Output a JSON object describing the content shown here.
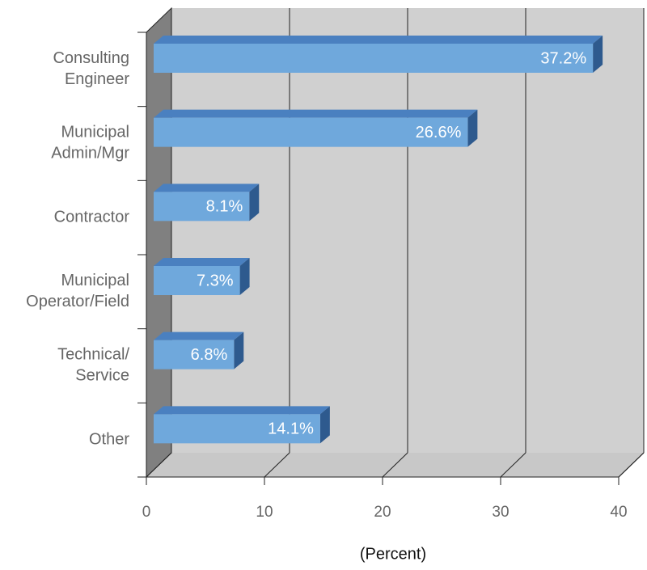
{
  "chart_data": {
    "type": "bar3d",
    "orientation": "horizontal",
    "categories": [
      "Consulting\nEngineer",
      "Municipal\nAdmin/Mgr",
      "Contractor",
      "Municipal\nOperator/Field",
      "Technical/\nService",
      "Other"
    ],
    "values": [
      37.2,
      26.6,
      8.1,
      7.3,
      6.8,
      14.1
    ],
    "value_labels": [
      "37.2%",
      "26.6%",
      "8.1%",
      "7.3%",
      "6.8%",
      "14.1%"
    ],
    "color": "#6fa8dc",
    "xlim": [
      0,
      40
    ],
    "xticks": [
      0,
      10,
      20,
      30,
      40
    ],
    "xlabel": "(Percent)",
    "grid": true
  }
}
